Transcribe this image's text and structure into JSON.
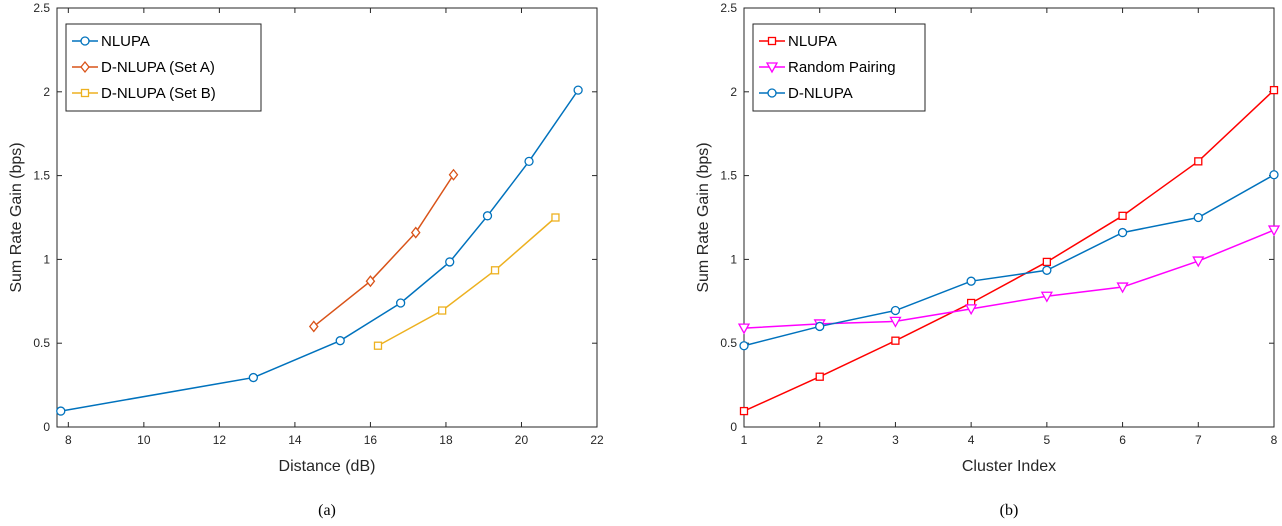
{
  "chart_data": [
    {
      "type": "line",
      "caption": "(a)",
      "xlabel": "Distance (dB)",
      "ylabel": "Sum Rate Gain (bps)",
      "xlim": [
        7.7,
        22
      ],
      "ylim": [
        0,
        2.5
      ],
      "xticks": [
        8,
        10,
        12,
        14,
        16,
        18,
        20,
        22
      ],
      "yticks": [
        0,
        0.5,
        1,
        1.5,
        2,
        2.5
      ],
      "grid": false,
      "legend_position": "top-left",
      "series": [
        {
          "name": "NLUPA",
          "color": "#0072BD",
          "marker": "circle",
          "x": [
            7.8,
            12.9,
            15.2,
            16.8,
            18.1,
            19.1,
            20.2,
            21.5
          ],
          "y": [
            0.095,
            0.295,
            0.515,
            0.74,
            0.985,
            1.26,
            1.585,
            2.01
          ]
        },
        {
          "name": "D-NLUPA (Set A)",
          "color": "#D95319",
          "marker": "diamond",
          "x": [
            14.5,
            16.0,
            17.2,
            18.2
          ],
          "y": [
            0.6,
            0.87,
            1.16,
            1.505
          ]
        },
        {
          "name": "D-NLUPA (Set B)",
          "color": "#EDB120",
          "marker": "square",
          "x": [
            16.2,
            17.9,
            19.3,
            20.9
          ],
          "y": [
            0.485,
            0.695,
            0.935,
            1.25
          ]
        }
      ]
    },
    {
      "type": "line",
      "caption": "(b)",
      "xlabel": "Cluster Index",
      "ylabel": "Sum Rate Gain (bps)",
      "xlim": [
        1,
        8
      ],
      "ylim": [
        0,
        2.5
      ],
      "xticks": [
        1,
        2,
        3,
        4,
        5,
        6,
        7,
        8
      ],
      "yticks": [
        0,
        0.5,
        1,
        1.5,
        2,
        2.5
      ],
      "grid": false,
      "legend_position": "top-left",
      "series": [
        {
          "name": "NLUPA",
          "color": "#FF0000",
          "marker": "square",
          "x": [
            1,
            2,
            3,
            4,
            5,
            6,
            7,
            8
          ],
          "y": [
            0.095,
            0.3,
            0.515,
            0.74,
            0.985,
            1.26,
            1.585,
            2.01
          ]
        },
        {
          "name": "Random Pairing",
          "color": "#FF00FF",
          "marker": "triangle-down",
          "x": [
            1,
            2,
            3,
            4,
            5,
            6,
            7,
            8
          ],
          "y": [
            0.59,
            0.615,
            0.63,
            0.705,
            0.78,
            0.835,
            0.99,
            1.175
          ]
        },
        {
          "name": "D-NLUPA",
          "color": "#0072BD",
          "marker": "circle",
          "x": [
            1,
            2,
            3,
            4,
            5,
            6,
            7,
            8
          ],
          "y": [
            0.485,
            0.6,
            0.695,
            0.87,
            0.935,
            1.16,
            1.25,
            1.505
          ]
        }
      ]
    }
  ]
}
